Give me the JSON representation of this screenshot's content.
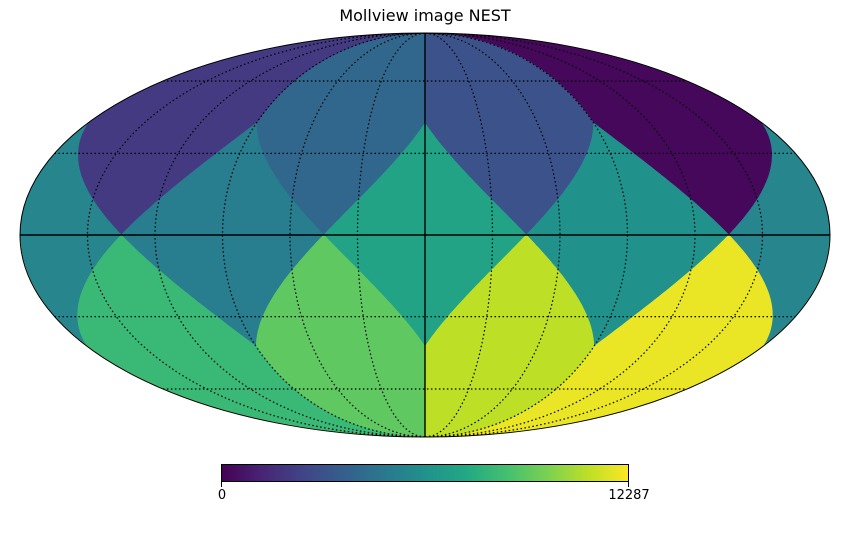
{
  "title": "Mollview image NEST",
  "colors": {
    "viridis": [
      "#440154",
      "#482475",
      "#414487",
      "#355f8d",
      "#2a788e",
      "#21918c",
      "#22a884",
      "#44bf70",
      "#7ad151",
      "#bddf26",
      "#fde725"
    ],
    "graticule": "#000000",
    "outline": "#000000"
  },
  "colorbar": {
    "min_label": "0",
    "max_label": "12287",
    "min": 0,
    "max": 12287,
    "colormap": "viridis"
  },
  "chart_data": {
    "type": "heatmap",
    "projection": "mollweide",
    "ordering": "NEST",
    "title": "Mollview image NEST",
    "value_range": [
      0,
      12287
    ],
    "graticule": true,
    "base_faces": [
      {
        "face": 0,
        "value_fraction": 0.33
      },
      {
        "face": 1,
        "value_fraction": 0.17
      },
      {
        "face": 2,
        "value_fraction": 0.02
      },
      {
        "face": 3,
        "value_fraction": 0.25
      },
      {
        "face": 4,
        "value_fraction": 0.58
      },
      {
        "face": 5,
        "value_fraction": 0.42
      },
      {
        "face": 6,
        "value_fraction": 0.45
      },
      {
        "face": 7,
        "value_fraction": 0.5
      },
      {
        "face": 8,
        "value_fraction": 0.75
      },
      {
        "face": 9,
        "value_fraction": 0.67
      },
      {
        "face": 10,
        "value_fraction": 0.97
      },
      {
        "face": 11,
        "value_fraction": 0.9
      }
    ]
  }
}
